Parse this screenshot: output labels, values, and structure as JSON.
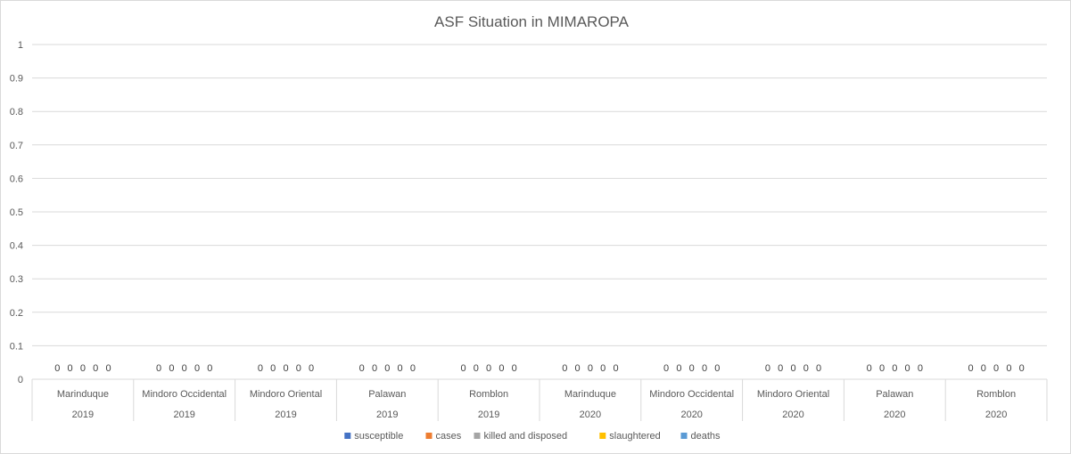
{
  "chart_data": {
    "type": "bar",
    "title": "ASF Situation in MIMAROPA",
    "ylim": [
      0,
      1
    ],
    "y_ticks": [
      "0",
      "0.1",
      "0.2",
      "0.3",
      "0.4",
      "0.5",
      "0.6",
      "0.7",
      "0.8",
      "0.9",
      "1"
    ],
    "grid": true,
    "legend_position": "bottom",
    "categories": [
      {
        "province": "Marinduque",
        "year": "2019"
      },
      {
        "province": "Mindoro Occidental",
        "year": "2019"
      },
      {
        "province": "Mindoro Oriental",
        "year": "2019"
      },
      {
        "province": "Palawan",
        "year": "2019"
      },
      {
        "province": "Romblon",
        "year": "2019"
      },
      {
        "province": "Marinduque",
        "year": "2020"
      },
      {
        "province": "Mindoro Occidental",
        "year": "2020"
      },
      {
        "province": "Mindoro Oriental",
        "year": "2020"
      },
      {
        "province": "Palawan",
        "year": "2020"
      },
      {
        "province": "Romblon",
        "year": "2020"
      }
    ],
    "series": [
      {
        "name": "susceptible",
        "color": "#4472c4",
        "values": [
          0,
          0,
          0,
          0,
          0,
          0,
          0,
          0,
          0,
          0
        ]
      },
      {
        "name": "cases",
        "color": "#ed7d31",
        "values": [
          0,
          0,
          0,
          0,
          0,
          0,
          0,
          0,
          0,
          0
        ]
      },
      {
        "name": "killed and disposed",
        "color": "#a5a5a5",
        "values": [
          0,
          0,
          0,
          0,
          0,
          0,
          0,
          0,
          0,
          0
        ]
      },
      {
        "name": "slaughtered",
        "color": "#ffc000",
        "values": [
          0,
          0,
          0,
          0,
          0,
          0,
          0,
          0,
          0,
          0
        ]
      },
      {
        "name": "deaths",
        "color": "#5b9bd5",
        "values": [
          0,
          0,
          0,
          0,
          0,
          0,
          0,
          0,
          0,
          0
        ]
      }
    ]
  }
}
